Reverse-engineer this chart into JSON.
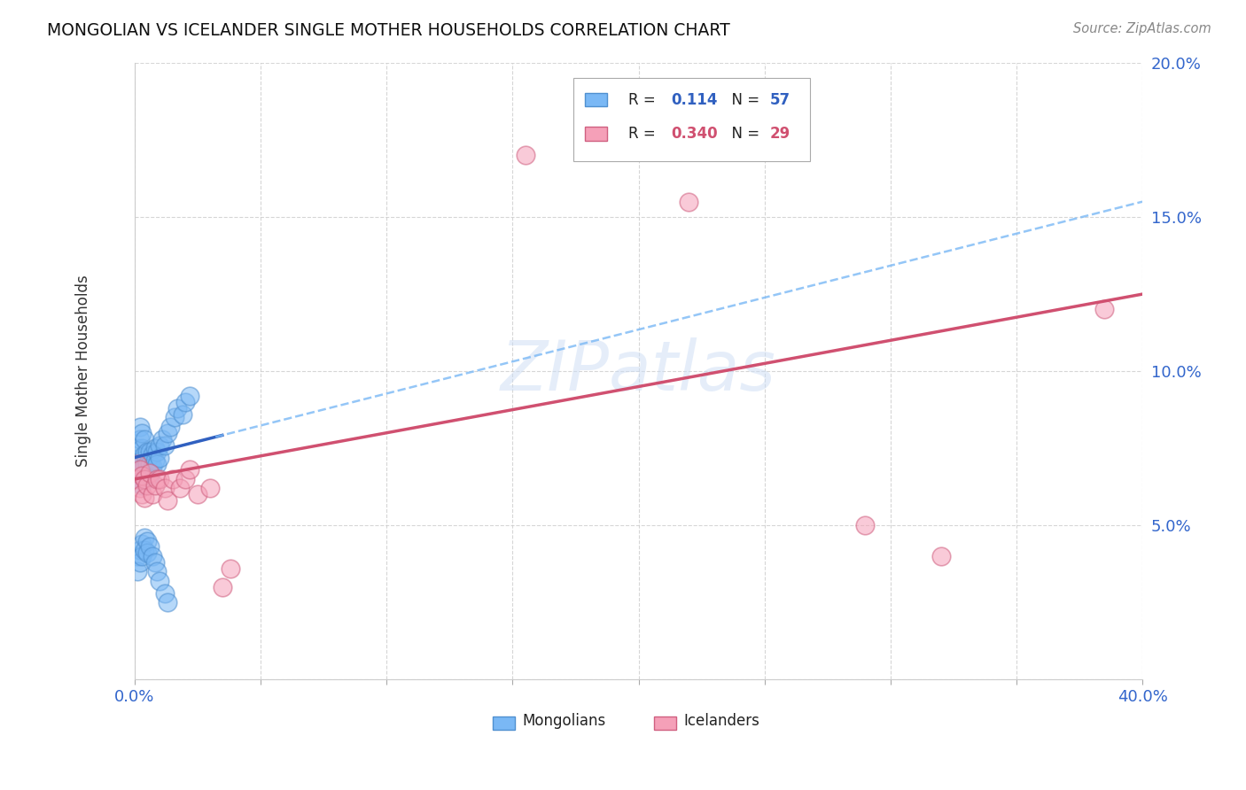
{
  "title": "MONGOLIAN VS ICELANDER SINGLE MOTHER HOUSEHOLDS CORRELATION CHART",
  "source": "Source: ZipAtlas.com",
  "ylabel_label": "Single Mother Households",
  "xlim": [
    0.0,
    0.4
  ],
  "ylim": [
    0.0,
    0.2
  ],
  "xtick_positions": [
    0.0,
    0.05,
    0.1,
    0.15,
    0.2,
    0.25,
    0.3,
    0.35,
    0.4
  ],
  "ytick_positions": [
    0.0,
    0.05,
    0.1,
    0.15,
    0.2
  ],
  "xtick_labels": [
    "0.0%",
    "",
    "",
    "",
    "",
    "",
    "",
    "",
    "40.0%"
  ],
  "ytick_labels": [
    "",
    "5.0%",
    "10.0%",
    "15.0%",
    "20.0%"
  ],
  "mongolian_color": "#7ab8f5",
  "mongolian_edge": "#5090d0",
  "icelander_color": "#f5a0b8",
  "icelander_edge": "#d06080",
  "line_mongolian_solid": "#3060c0",
  "line_mongolian_dash": "#7ab8f5",
  "line_icelander": "#d05070",
  "watermark": "ZIPatlas",
  "legend_r1_color": "#3060c0",
  "legend_r2_color": "#d05070",
  "mon_x": [
    0.001,
    0.001,
    0.002,
    0.002,
    0.002,
    0.002,
    0.002,
    0.003,
    0.003,
    0.003,
    0.003,
    0.003,
    0.004,
    0.004,
    0.004,
    0.004,
    0.005,
    0.005,
    0.005,
    0.006,
    0.006,
    0.006,
    0.007,
    0.007,
    0.008,
    0.008,
    0.009,
    0.009,
    0.01,
    0.01,
    0.011,
    0.012,
    0.013,
    0.014,
    0.016,
    0.017,
    0.019,
    0.02,
    0.022,
    0.001,
    0.001,
    0.002,
    0.002,
    0.003,
    0.003,
    0.004,
    0.004,
    0.005,
    0.005,
    0.006,
    0.007,
    0.008,
    0.009,
    0.01,
    0.012,
    0.013
  ],
  "mon_y": [
    0.075,
    0.07,
    0.072,
    0.068,
    0.065,
    0.082,
    0.078,
    0.075,
    0.071,
    0.068,
    0.063,
    0.08,
    0.073,
    0.069,
    0.065,
    0.078,
    0.074,
    0.07,
    0.066,
    0.074,
    0.07,
    0.066,
    0.073,
    0.069,
    0.075,
    0.071,
    0.074,
    0.07,
    0.076,
    0.072,
    0.078,
    0.076,
    0.08,
    0.082,
    0.085,
    0.088,
    0.086,
    0.09,
    0.092,
    0.04,
    0.035,
    0.042,
    0.038,
    0.044,
    0.04,
    0.046,
    0.042,
    0.045,
    0.041,
    0.043,
    0.04,
    0.038,
    0.035,
    0.032,
    0.028,
    0.025
  ],
  "ice_x": [
    0.001,
    0.001,
    0.002,
    0.002,
    0.003,
    0.003,
    0.004,
    0.004,
    0.005,
    0.006,
    0.007,
    0.008,
    0.009,
    0.01,
    0.012,
    0.013,
    0.015,
    0.018,
    0.02,
    0.022,
    0.025,
    0.03,
    0.035,
    0.038,
    0.155,
    0.22,
    0.29,
    0.32,
    0.385
  ],
  "ice_y": [
    0.07,
    0.065,
    0.068,
    0.062,
    0.066,
    0.06,
    0.065,
    0.059,
    0.063,
    0.067,
    0.06,
    0.063,
    0.065,
    0.065,
    0.062,
    0.058,
    0.065,
    0.062,
    0.065,
    0.068,
    0.06,
    0.062,
    0.03,
    0.036,
    0.17,
    0.155,
    0.05,
    0.04,
    0.12
  ]
}
